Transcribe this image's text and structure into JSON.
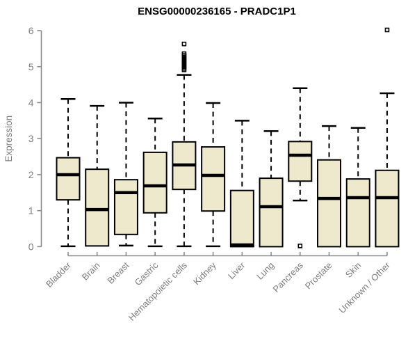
{
  "chart_data": {
    "type": "boxplot",
    "title": "ENSG00000236165 - PRADC1P1",
    "xlabel": "",
    "ylabel": "Expression",
    "ylim": [
      0,
      6
    ],
    "yticks": [
      0,
      1,
      2,
      3,
      4,
      5,
      6
    ],
    "grid": false,
    "legend": null,
    "categories": [
      "Bladder",
      "Brain",
      "Breast",
      "Gastric",
      "Hematopoietic cells",
      "Kidney",
      "Liver",
      "Lung",
      "Pancreas",
      "Prostate",
      "Skin",
      "Unknown / Other"
    ],
    "boxes": [
      {
        "label": "Bladder",
        "whisker_low": 0.01,
        "q1": 1.3,
        "median": 2.0,
        "q3": 2.47,
        "whisker_high": 4.1,
        "outliers": []
      },
      {
        "label": "Brain",
        "whisker_low": 0.02,
        "q1": 0.02,
        "median": 1.03,
        "q3": 2.15,
        "whisker_high": 3.91,
        "outliers": []
      },
      {
        "label": "Breast",
        "whisker_low": 0.03,
        "q1": 0.34,
        "median": 1.5,
        "q3": 1.86,
        "whisker_high": 4.0,
        "outliers": []
      },
      {
        "label": "Gastric",
        "whisker_low": 0.01,
        "q1": 0.94,
        "median": 1.69,
        "q3": 2.62,
        "whisker_high": 3.56,
        "outliers": []
      },
      {
        "label": "Hematopoietic cells",
        "whisker_low": 0.01,
        "q1": 1.59,
        "median": 2.27,
        "q3": 2.91,
        "whisker_high": 4.77,
        "outliers": [
          5.63,
          5.36,
          5.31,
          5.27,
          5.23,
          5.19,
          5.15,
          5.11,
          5.07,
          5.03,
          4.99,
          4.95,
          4.91
        ]
      },
      {
        "label": "Kidney",
        "whisker_low": 0.01,
        "q1": 0.99,
        "median": 1.98,
        "q3": 2.77,
        "whisker_high": 3.99,
        "outliers": []
      },
      {
        "label": "Liver",
        "whisker_low": 0.0,
        "q1": 0.0,
        "median": 0.05,
        "q3": 1.56,
        "whisker_high": 3.5,
        "outliers": []
      },
      {
        "label": "Lung",
        "whisker_low": 0.0,
        "q1": 0.0,
        "median": 1.11,
        "q3": 1.9,
        "whisker_high": 3.21,
        "outliers": []
      },
      {
        "label": "Pancreas",
        "whisker_low": 1.28,
        "q1": 1.82,
        "median": 2.54,
        "q3": 2.92,
        "whisker_high": 4.4,
        "outliers": [
          0.02
        ]
      },
      {
        "label": "Prostate",
        "whisker_low": 0.0,
        "q1": 0.0,
        "median": 1.34,
        "q3": 2.41,
        "whisker_high": 3.35,
        "outliers": []
      },
      {
        "label": "Skin",
        "whisker_low": 0.0,
        "q1": 0.0,
        "median": 1.36,
        "q3": 1.88,
        "whisker_high": 3.3,
        "outliers": []
      },
      {
        "label": "Unknown / Other",
        "whisker_low": 0.0,
        "q1": 0.0,
        "median": 1.36,
        "q3": 2.12,
        "whisker_high": 4.26,
        "outliers": [
          6.02
        ]
      }
    ],
    "colors": {
      "box_fill": "#EEE8CD",
      "box_stroke": "#000000",
      "axis": "#8a8a8a",
      "text": "#7d7d7d",
      "title": "#000000",
      "background": "#ffffff"
    }
  }
}
